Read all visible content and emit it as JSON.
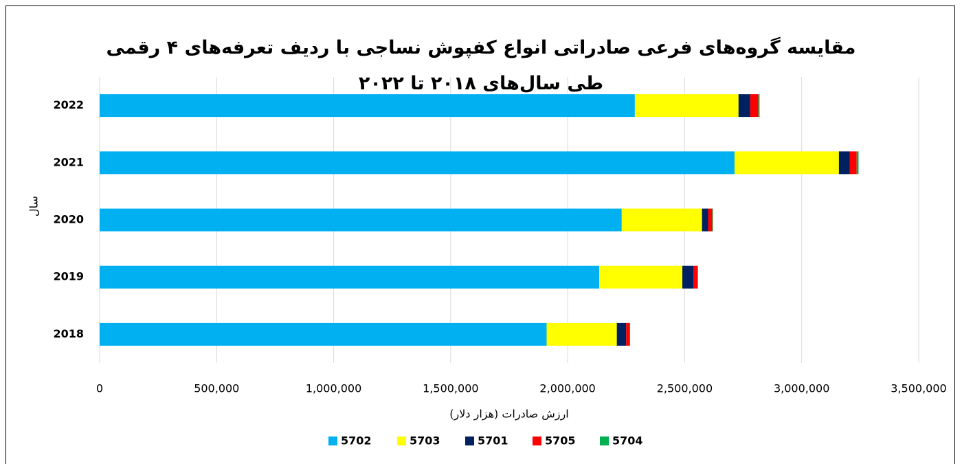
{
  "chart_data": {
    "type": "stacked_barh",
    "title": "مقایسه گروه‌های فرعی صادراتی انواع کفپوش نساجی با ردیف تعرفه‌های ۴ رقمی طی سال‌های ۲۰۱۸ تا ۲۰۲۲",
    "x_label": "ارزش صادرات (هزار دلار)",
    "y_label": "سال",
    "categories": [
      "2018",
      "2019",
      "2020",
      "2021",
      "2022"
    ],
    "series": [
      {
        "name": "5702",
        "color": "#00b0f0",
        "values": [
          1910000,
          2135000,
          2231000,
          2713000,
          2287000
        ]
      },
      {
        "name": "5703",
        "color": "#ffff00",
        "values": [
          300000,
          355000,
          343000,
          446000,
          443000
        ]
      },
      {
        "name": "5701",
        "color": "#002060",
        "values": [
          40000,
          47000,
          26000,
          47000,
          50000
        ]
      },
      {
        "name": "5705",
        "color": "#ff0000",
        "values": [
          15000,
          18000,
          18000,
          29000,
          35000
        ]
      },
      {
        "name": "5704",
        "color": "#00b050",
        "values": [
          2000,
          2000,
          3000,
          8000,
          5000
        ]
      }
    ],
    "xlim": [
      0,
      3500000
    ],
    "xticks": [
      0,
      {
        "value": 500000,
        "label": "500,000"
      },
      {
        "value": 1000000,
        "label": "1,000,000"
      },
      {
        "value": 1500000,
        "label": "1,500,000"
      },
      {
        "value": 2000000,
        "label": "2,000,000"
      },
      {
        "value": 2500000,
        "label": "2,500,000"
      },
      {
        "value": 3000000,
        "label": "3,000,000"
      },
      {
        "value": 3500000,
        "label": "3,500,000"
      }
    ],
    "grid": true,
    "legend": "bottom"
  }
}
